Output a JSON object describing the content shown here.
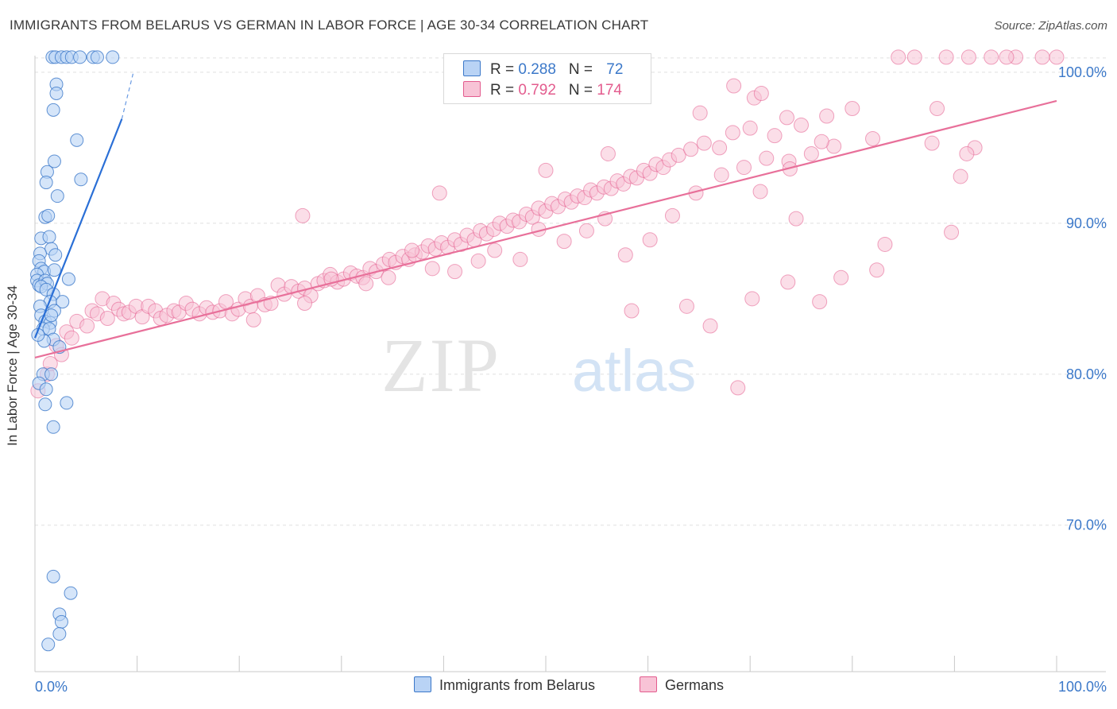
{
  "title": "IMMIGRANTS FROM BELARUS VS GERMAN IN LABOR FORCE | AGE 30-34 CORRELATION CHART",
  "source": "Source: ZipAtlas.com",
  "watermark": {
    "zip": "ZIP",
    "atlas": "atlas"
  },
  "legend": {
    "rows": [
      {
        "r_label": "R = ",
        "r_value": "0.288",
        "n_label": "N = ",
        "n_value": "72"
      },
      {
        "r_label": "R = ",
        "r_value": "0.792",
        "n_label": "N = ",
        "n_value": "174"
      }
    ]
  },
  "bottom_legend": [
    "Immigrants from Belarus",
    "Germans"
  ],
  "colors": {
    "blue": "#3b78c9",
    "blue_fill": "#b9d3f5",
    "blue_line": "#2a6fd6",
    "pink": "#e35c8e",
    "pink_fill": "#f8c3d6",
    "pink_line": "#e8709a",
    "grid": "#e0e0e0",
    "axis": "#c8c8c8"
  },
  "chart_data": {
    "type": "scatter",
    "title": "IMMIGRANTS FROM BELARUS VS GERMAN IN LABOR FORCE | AGE 30-34 CORRELATION CHART",
    "xlabel": "",
    "ylabel": "In Labor Force | Age 30-34",
    "xlim": [
      0,
      100
    ],
    "ylim": [
      60.3,
      101.1
    ],
    "x_tick_labels": [
      "0.0%",
      "100.0%"
    ],
    "y_ticks": [
      70,
      80,
      90,
      100
    ],
    "y_tick_labels": [
      "70.0%",
      "80.0%",
      "90.0%",
      "100.0%"
    ],
    "grid": true,
    "legend_position": "top-center",
    "series": [
      {
        "name": "Immigrants from Belarus",
        "color": "#3b78c9",
        "r": 0.288,
        "n": 72,
        "trend": {
          "x": [
            0.0,
            8.5
          ],
          "y": [
            82.4,
            96.9
          ],
          "dashed_to": [
            9.6,
            99.9
          ]
        },
        "points": [
          [
            1.7,
            101.0
          ],
          [
            2.0,
            101.0
          ],
          [
            2.6,
            101.0
          ],
          [
            3.1,
            101.0
          ],
          [
            3.6,
            101.0
          ],
          [
            4.4,
            101.0
          ],
          [
            5.7,
            101.0
          ],
          [
            6.1,
            101.0
          ],
          [
            7.6,
            101.0
          ],
          [
            2.1,
            99.2
          ],
          [
            2.1,
            98.6
          ],
          [
            1.8,
            97.5
          ],
          [
            4.1,
            95.5
          ],
          [
            1.9,
            94.1
          ],
          [
            1.2,
            93.4
          ],
          [
            1.1,
            92.7
          ],
          [
            4.5,
            92.9
          ],
          [
            2.2,
            91.8
          ],
          [
            1.0,
            90.4
          ],
          [
            1.3,
            90.5
          ],
          [
            0.6,
            89.0
          ],
          [
            1.4,
            89.1
          ],
          [
            1.6,
            88.3
          ],
          [
            2.0,
            87.9
          ],
          [
            0.5,
            88.0
          ],
          [
            0.4,
            87.5
          ],
          [
            0.6,
            87.0
          ],
          [
            0.9,
            86.8
          ],
          [
            0.2,
            86.6
          ],
          [
            1.9,
            86.9
          ],
          [
            0.2,
            86.2
          ],
          [
            0.4,
            85.9
          ],
          [
            1.0,
            86.2
          ],
          [
            1.2,
            86.0
          ],
          [
            0.6,
            85.8
          ],
          [
            3.3,
            86.3
          ],
          [
            1.1,
            85.6
          ],
          [
            1.8,
            85.3
          ],
          [
            1.5,
            84.8
          ],
          [
            2.7,
            84.8
          ],
          [
            0.5,
            84.5
          ],
          [
            1.9,
            84.2
          ],
          [
            0.6,
            83.9
          ],
          [
            1.0,
            83.5
          ],
          [
            1.5,
            83.4
          ],
          [
            0.8,
            83.0
          ],
          [
            1.4,
            83.0
          ],
          [
            1.6,
            83.9
          ],
          [
            1.8,
            82.3
          ],
          [
            0.9,
            82.2
          ],
          [
            0.3,
            82.6
          ],
          [
            2.4,
            81.8
          ],
          [
            0.8,
            80.0
          ],
          [
            1.6,
            80.0
          ],
          [
            0.4,
            79.4
          ],
          [
            1.1,
            79.0
          ],
          [
            3.1,
            78.1
          ],
          [
            1.8,
            76.5
          ],
          [
            1.0,
            78.0
          ],
          [
            1.8,
            66.6
          ],
          [
            3.5,
            65.5
          ],
          [
            2.4,
            64.1
          ],
          [
            2.6,
            63.6
          ],
          [
            2.4,
            62.8
          ],
          [
            1.3,
            62.1
          ]
        ]
      },
      {
        "name": "Germans",
        "color": "#e35c8e",
        "r": 0.792,
        "n": 174,
        "trend": {
          "x": [
            0.0,
            100.0
          ],
          "y": [
            81.1,
            98.1
          ]
        },
        "points": [
          [
            0.3,
            78.9
          ],
          [
            1.2,
            80.0
          ],
          [
            1.5,
            80.7
          ],
          [
            2.1,
            81.9
          ],
          [
            2.6,
            81.3
          ],
          [
            3.1,
            82.8
          ],
          [
            3.6,
            82.4
          ],
          [
            4.1,
            83.5
          ],
          [
            5.1,
            83.2
          ],
          [
            5.6,
            84.2
          ],
          [
            6.1,
            84.0
          ],
          [
            6.6,
            85.0
          ],
          [
            7.1,
            83.7
          ],
          [
            7.7,
            84.7
          ],
          [
            8.2,
            84.3
          ],
          [
            8.7,
            84.0
          ],
          [
            9.2,
            84.1
          ],
          [
            9.9,
            84.5
          ],
          [
            10.5,
            83.8
          ],
          [
            11.1,
            84.5
          ],
          [
            11.8,
            84.2
          ],
          [
            12.3,
            83.7
          ],
          [
            12.9,
            83.9
          ],
          [
            13.6,
            84.2
          ],
          [
            14.1,
            84.1
          ],
          [
            14.8,
            84.7
          ],
          [
            15.4,
            84.3
          ],
          [
            16.1,
            84.0
          ],
          [
            16.8,
            84.4
          ],
          [
            17.4,
            84.1
          ],
          [
            18.1,
            84.2
          ],
          [
            18.7,
            84.8
          ],
          [
            19.3,
            84.0
          ],
          [
            19.9,
            84.3
          ],
          [
            20.6,
            85.0
          ],
          [
            21.1,
            84.5
          ],
          [
            21.8,
            85.2
          ],
          [
            22.5,
            84.6
          ],
          [
            23.1,
            84.7
          ],
          [
            23.8,
            85.9
          ],
          [
            24.4,
            85.3
          ],
          [
            25.1,
            85.8
          ],
          [
            25.8,
            85.5
          ],
          [
            26.4,
            85.7
          ],
          [
            27.0,
            85.2
          ],
          [
            27.7,
            86.0
          ],
          [
            28.3,
            86.2
          ],
          [
            28.9,
            86.6
          ],
          [
            29.6,
            86.1
          ],
          [
            30.2,
            86.3
          ],
          [
            30.9,
            86.7
          ],
          [
            31.5,
            86.5
          ],
          [
            32.1,
            86.4
          ],
          [
            32.8,
            87.0
          ],
          [
            33.4,
            86.8
          ],
          [
            34.1,
            87.3
          ],
          [
            34.7,
            87.6
          ],
          [
            35.3,
            87.4
          ],
          [
            36.0,
            87.8
          ],
          [
            36.6,
            87.6
          ],
          [
            37.2,
            87.9
          ],
          [
            37.9,
            88.1
          ],
          [
            38.5,
            88.5
          ],
          [
            39.2,
            88.3
          ],
          [
            39.8,
            88.7
          ],
          [
            40.4,
            88.4
          ],
          [
            41.1,
            88.9
          ],
          [
            41.7,
            88.6
          ],
          [
            42.3,
            89.2
          ],
          [
            43.0,
            88.9
          ],
          [
            43.6,
            89.5
          ],
          [
            44.2,
            89.3
          ],
          [
            44.9,
            89.6
          ],
          [
            45.5,
            90.0
          ],
          [
            46.2,
            89.8
          ],
          [
            46.8,
            90.2
          ],
          [
            47.4,
            90.1
          ],
          [
            48.1,
            90.6
          ],
          [
            48.7,
            90.4
          ],
          [
            49.3,
            91.0
          ],
          [
            50.0,
            90.8
          ],
          [
            50.6,
            91.3
          ],
          [
            51.2,
            91.1
          ],
          [
            51.9,
            91.6
          ],
          [
            52.5,
            91.4
          ],
          [
            53.1,
            91.8
          ],
          [
            53.8,
            91.7
          ],
          [
            54.4,
            92.2
          ],
          [
            55.0,
            92.0
          ],
          [
            55.7,
            92.4
          ],
          [
            56.4,
            92.3
          ],
          [
            57.0,
            92.8
          ],
          [
            57.6,
            92.6
          ],
          [
            58.3,
            93.1
          ],
          [
            58.9,
            93.0
          ],
          [
            59.6,
            93.5
          ],
          [
            60.2,
            93.3
          ],
          [
            60.8,
            93.9
          ],
          [
            61.5,
            93.7
          ],
          [
            62.1,
            94.2
          ],
          [
            63.0,
            94.5
          ],
          [
            64.2,
            94.9
          ],
          [
            65.5,
            95.3
          ],
          [
            67.0,
            95.0
          ],
          [
            68.3,
            96.0
          ],
          [
            70.0,
            96.3
          ],
          [
            72.4,
            95.8
          ],
          [
            75.0,
            96.5
          ],
          [
            77.5,
            97.1
          ],
          [
            80.0,
            97.6
          ],
          [
            21.4,
            83.6
          ],
          [
            26.4,
            84.7
          ],
          [
            29.0,
            86.3
          ],
          [
            32.4,
            86.0
          ],
          [
            34.6,
            86.4
          ],
          [
            36.9,
            88.2
          ],
          [
            38.9,
            87.0
          ],
          [
            41.1,
            86.8
          ],
          [
            43.4,
            87.5
          ],
          [
            45.0,
            88.2
          ],
          [
            47.5,
            87.6
          ],
          [
            49.3,
            89.6
          ],
          [
            51.8,
            88.8
          ],
          [
            54.0,
            89.5
          ],
          [
            55.8,
            90.3
          ],
          [
            57.8,
            87.9
          ],
          [
            60.2,
            88.9
          ],
          [
            62.4,
            90.5
          ],
          [
            64.7,
            92.0
          ],
          [
            67.2,
            93.2
          ],
          [
            69.4,
            93.7
          ],
          [
            71.6,
            94.3
          ],
          [
            73.8,
            94.1
          ],
          [
            76.0,
            94.6
          ],
          [
            78.2,
            95.1
          ],
          [
            26.2,
            90.5
          ],
          [
            39.6,
            92.0
          ],
          [
            50.0,
            93.5
          ],
          [
            56.1,
            94.6
          ],
          [
            65.1,
            97.3
          ],
          [
            68.4,
            99.1
          ],
          [
            70.4,
            98.3
          ],
          [
            71.1,
            98.6
          ],
          [
            73.9,
            93.6
          ],
          [
            74.5,
            90.3
          ],
          [
            63.8,
            84.5
          ],
          [
            70.2,
            85.0
          ],
          [
            73.7,
            86.1
          ],
          [
            78.9,
            86.4
          ],
          [
            82.4,
            86.9
          ],
          [
            89.7,
            89.4
          ],
          [
            90.6,
            93.1
          ],
          [
            92.0,
            95.0
          ],
          [
            88.3,
            97.6
          ],
          [
            71.0,
            92.1
          ],
          [
            73.6,
            97.0
          ],
          [
            77.0,
            95.4
          ],
          [
            82.0,
            95.6
          ],
          [
            87.8,
            95.3
          ],
          [
            66.1,
            83.2
          ],
          [
            68.8,
            79.1
          ],
          [
            58.4,
            84.2
          ],
          [
            76.8,
            84.8
          ],
          [
            83.2,
            88.6
          ],
          [
            91.2,
            94.6
          ],
          [
            96.0,
            101.0
          ],
          [
            100.0,
            101.0
          ],
          [
            84.5,
            101.0
          ],
          [
            86.1,
            101.0
          ],
          [
            89.2,
            101.0
          ],
          [
            91.4,
            101.0
          ],
          [
            93.6,
            101.0
          ],
          [
            98.6,
            101.0
          ],
          [
            95.1,
            101.0
          ]
        ]
      }
    ]
  }
}
